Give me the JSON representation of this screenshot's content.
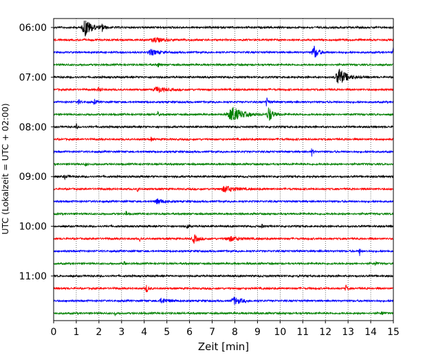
{
  "chart_data": {
    "type": "line",
    "title": "",
    "xlabel": "Zeit  [min]",
    "ylabel": "UTC (Lokalzeit = UTC + 02:00)",
    "xlim": [
      0,
      15
    ],
    "x_ticks": [
      0,
      1,
      2,
      3,
      4,
      5,
      6,
      7,
      8,
      9,
      10,
      11,
      12,
      13,
      14,
      15
    ],
    "x_tick_labels": [
      "0",
      "1",
      "2",
      "3",
      "4",
      "5",
      "6",
      "7",
      "8",
      "9",
      "10",
      "11",
      "12",
      "13",
      "14",
      "15"
    ],
    "y_tick_labels": [
      "06:00",
      "07:00",
      "08:00",
      "09:00",
      "10:00",
      "11:00"
    ],
    "grid": {
      "x": true,
      "y": false,
      "style": "dotted"
    },
    "trace_colors": [
      "#000000",
      "#ff0000",
      "#0000ff",
      "#008000"
    ],
    "traces": [
      {
        "start": "06:00",
        "color": "#000000",
        "events": [
          {
            "t": 1.4,
            "amp": 1.0,
            "dur": 0.45
          },
          {
            "t": 2.15,
            "amp": 0.45,
            "dur": 0.12
          }
        ]
      },
      {
        "start": "06:15",
        "color": "#ff0000",
        "events": [
          {
            "t": 4.5,
            "amp": 0.25,
            "dur": 0.6
          }
        ]
      },
      {
        "start": "06:30",
        "color": "#0000ff",
        "events": [
          {
            "t": 4.3,
            "amp": 0.3,
            "dur": 0.5
          },
          {
            "t": 11.5,
            "amp": 0.75,
            "dur": 0.3
          },
          {
            "t": 15.0,
            "amp": 0.55,
            "dur": 0.1
          }
        ]
      },
      {
        "start": "06:45",
        "color": "#008000",
        "events": [
          {
            "t": 4.6,
            "amp": 0.35,
            "dur": 0.08
          }
        ]
      },
      {
        "start": "07:00",
        "color": "#000000",
        "events": [
          {
            "t": 12.6,
            "amp": 1.0,
            "dur": 0.5
          }
        ]
      },
      {
        "start": "07:15",
        "color": "#ff0000",
        "events": [
          {
            "t": 4.6,
            "amp": 0.3,
            "dur": 0.6
          },
          {
            "t": 2.0,
            "amp": 0.2,
            "dur": 0.2
          }
        ]
      },
      {
        "start": "07:30",
        "color": "#0000ff",
        "events": [
          {
            "t": 1.1,
            "amp": 0.35,
            "dur": 0.1
          },
          {
            "t": 1.8,
            "amp": 0.25,
            "dur": 0.15
          },
          {
            "t": 9.4,
            "amp": 0.5,
            "dur": 0.15
          }
        ]
      },
      {
        "start": "07:45",
        "color": "#008000",
        "events": [
          {
            "t": 7.9,
            "amp": 0.85,
            "dur": 0.7
          },
          {
            "t": 9.5,
            "amp": 0.9,
            "dur": 0.25
          },
          {
            "t": 4.6,
            "amp": 0.35,
            "dur": 0.06
          }
        ]
      },
      {
        "start": "08:00",
        "color": "#000000",
        "events": [
          {
            "t": 1.0,
            "amp": 0.4,
            "dur": 0.06
          }
        ]
      },
      {
        "start": "08:15",
        "color": "#ff0000",
        "events": [
          {
            "t": 4.3,
            "amp": 0.3,
            "dur": 0.06
          }
        ]
      },
      {
        "start": "08:30",
        "color": "#0000ff",
        "events": [
          {
            "t": 11.4,
            "amp": 0.45,
            "dur": 0.1
          }
        ]
      },
      {
        "start": "08:45",
        "color": "#008000",
        "events": [
          {
            "t": 1.4,
            "amp": 0.2,
            "dur": 0.1
          }
        ]
      },
      {
        "start": "09:00",
        "color": "#000000",
        "events": [
          {
            "t": 0.5,
            "amp": 0.2,
            "dur": 0.2
          }
        ]
      },
      {
        "start": "09:15",
        "color": "#ff0000",
        "events": [
          {
            "t": 7.6,
            "amp": 0.35,
            "dur": 0.7
          },
          {
            "t": 3.7,
            "amp": 0.3,
            "dur": 0.08
          }
        ]
      },
      {
        "start": "09:30",
        "color": "#0000ff",
        "events": [
          {
            "t": 4.6,
            "amp": 0.3,
            "dur": 0.4
          }
        ]
      },
      {
        "start": "09:45",
        "color": "#008000",
        "events": [
          {
            "t": 3.2,
            "amp": 0.4,
            "dur": 0.06
          }
        ]
      },
      {
        "start": "10:00",
        "color": "#000000",
        "events": [
          {
            "t": 5.9,
            "amp": 0.3,
            "dur": 0.12
          },
          {
            "t": 9.2,
            "amp": 0.25,
            "dur": 0.06
          }
        ]
      },
      {
        "start": "10:15",
        "color": "#ff0000",
        "events": [
          {
            "t": 6.2,
            "amp": 0.45,
            "dur": 0.3
          },
          {
            "t": 7.8,
            "amp": 0.25,
            "dur": 0.7
          },
          {
            "t": 3.8,
            "amp": 0.3,
            "dur": 0.05
          }
        ]
      },
      {
        "start": "10:30",
        "color": "#0000ff",
        "events": [
          {
            "t": 13.5,
            "amp": 0.75,
            "dur": 0.05
          }
        ]
      },
      {
        "start": "10:45",
        "color": "#008000",
        "events": [
          {
            "t": 3.1,
            "amp": 0.4,
            "dur": 0.06
          },
          {
            "t": 14.2,
            "amp": 0.3,
            "dur": 0.08
          }
        ]
      },
      {
        "start": "11:00",
        "color": "#000000",
        "events": [
          {
            "t": 10.8,
            "amp": 0.35,
            "dur": 0.05
          }
        ]
      },
      {
        "start": "11:15",
        "color": "#ff0000",
        "events": [
          {
            "t": 4.1,
            "amp": 0.45,
            "dur": 0.15
          },
          {
            "t": 12.9,
            "amp": 0.4,
            "dur": 0.1
          }
        ]
      },
      {
        "start": "11:30",
        "color": "#0000ff",
        "events": [
          {
            "t": 8.0,
            "amp": 0.4,
            "dur": 0.5
          },
          {
            "t": 4.8,
            "amp": 0.25,
            "dur": 0.5
          }
        ]
      },
      {
        "start": "11:45",
        "color": "#008000",
        "events": [
          {
            "t": 2.7,
            "amp": 0.25,
            "dur": 0.06
          },
          {
            "t": 14.5,
            "amp": 0.3,
            "dur": 0.08
          }
        ]
      }
    ]
  }
}
